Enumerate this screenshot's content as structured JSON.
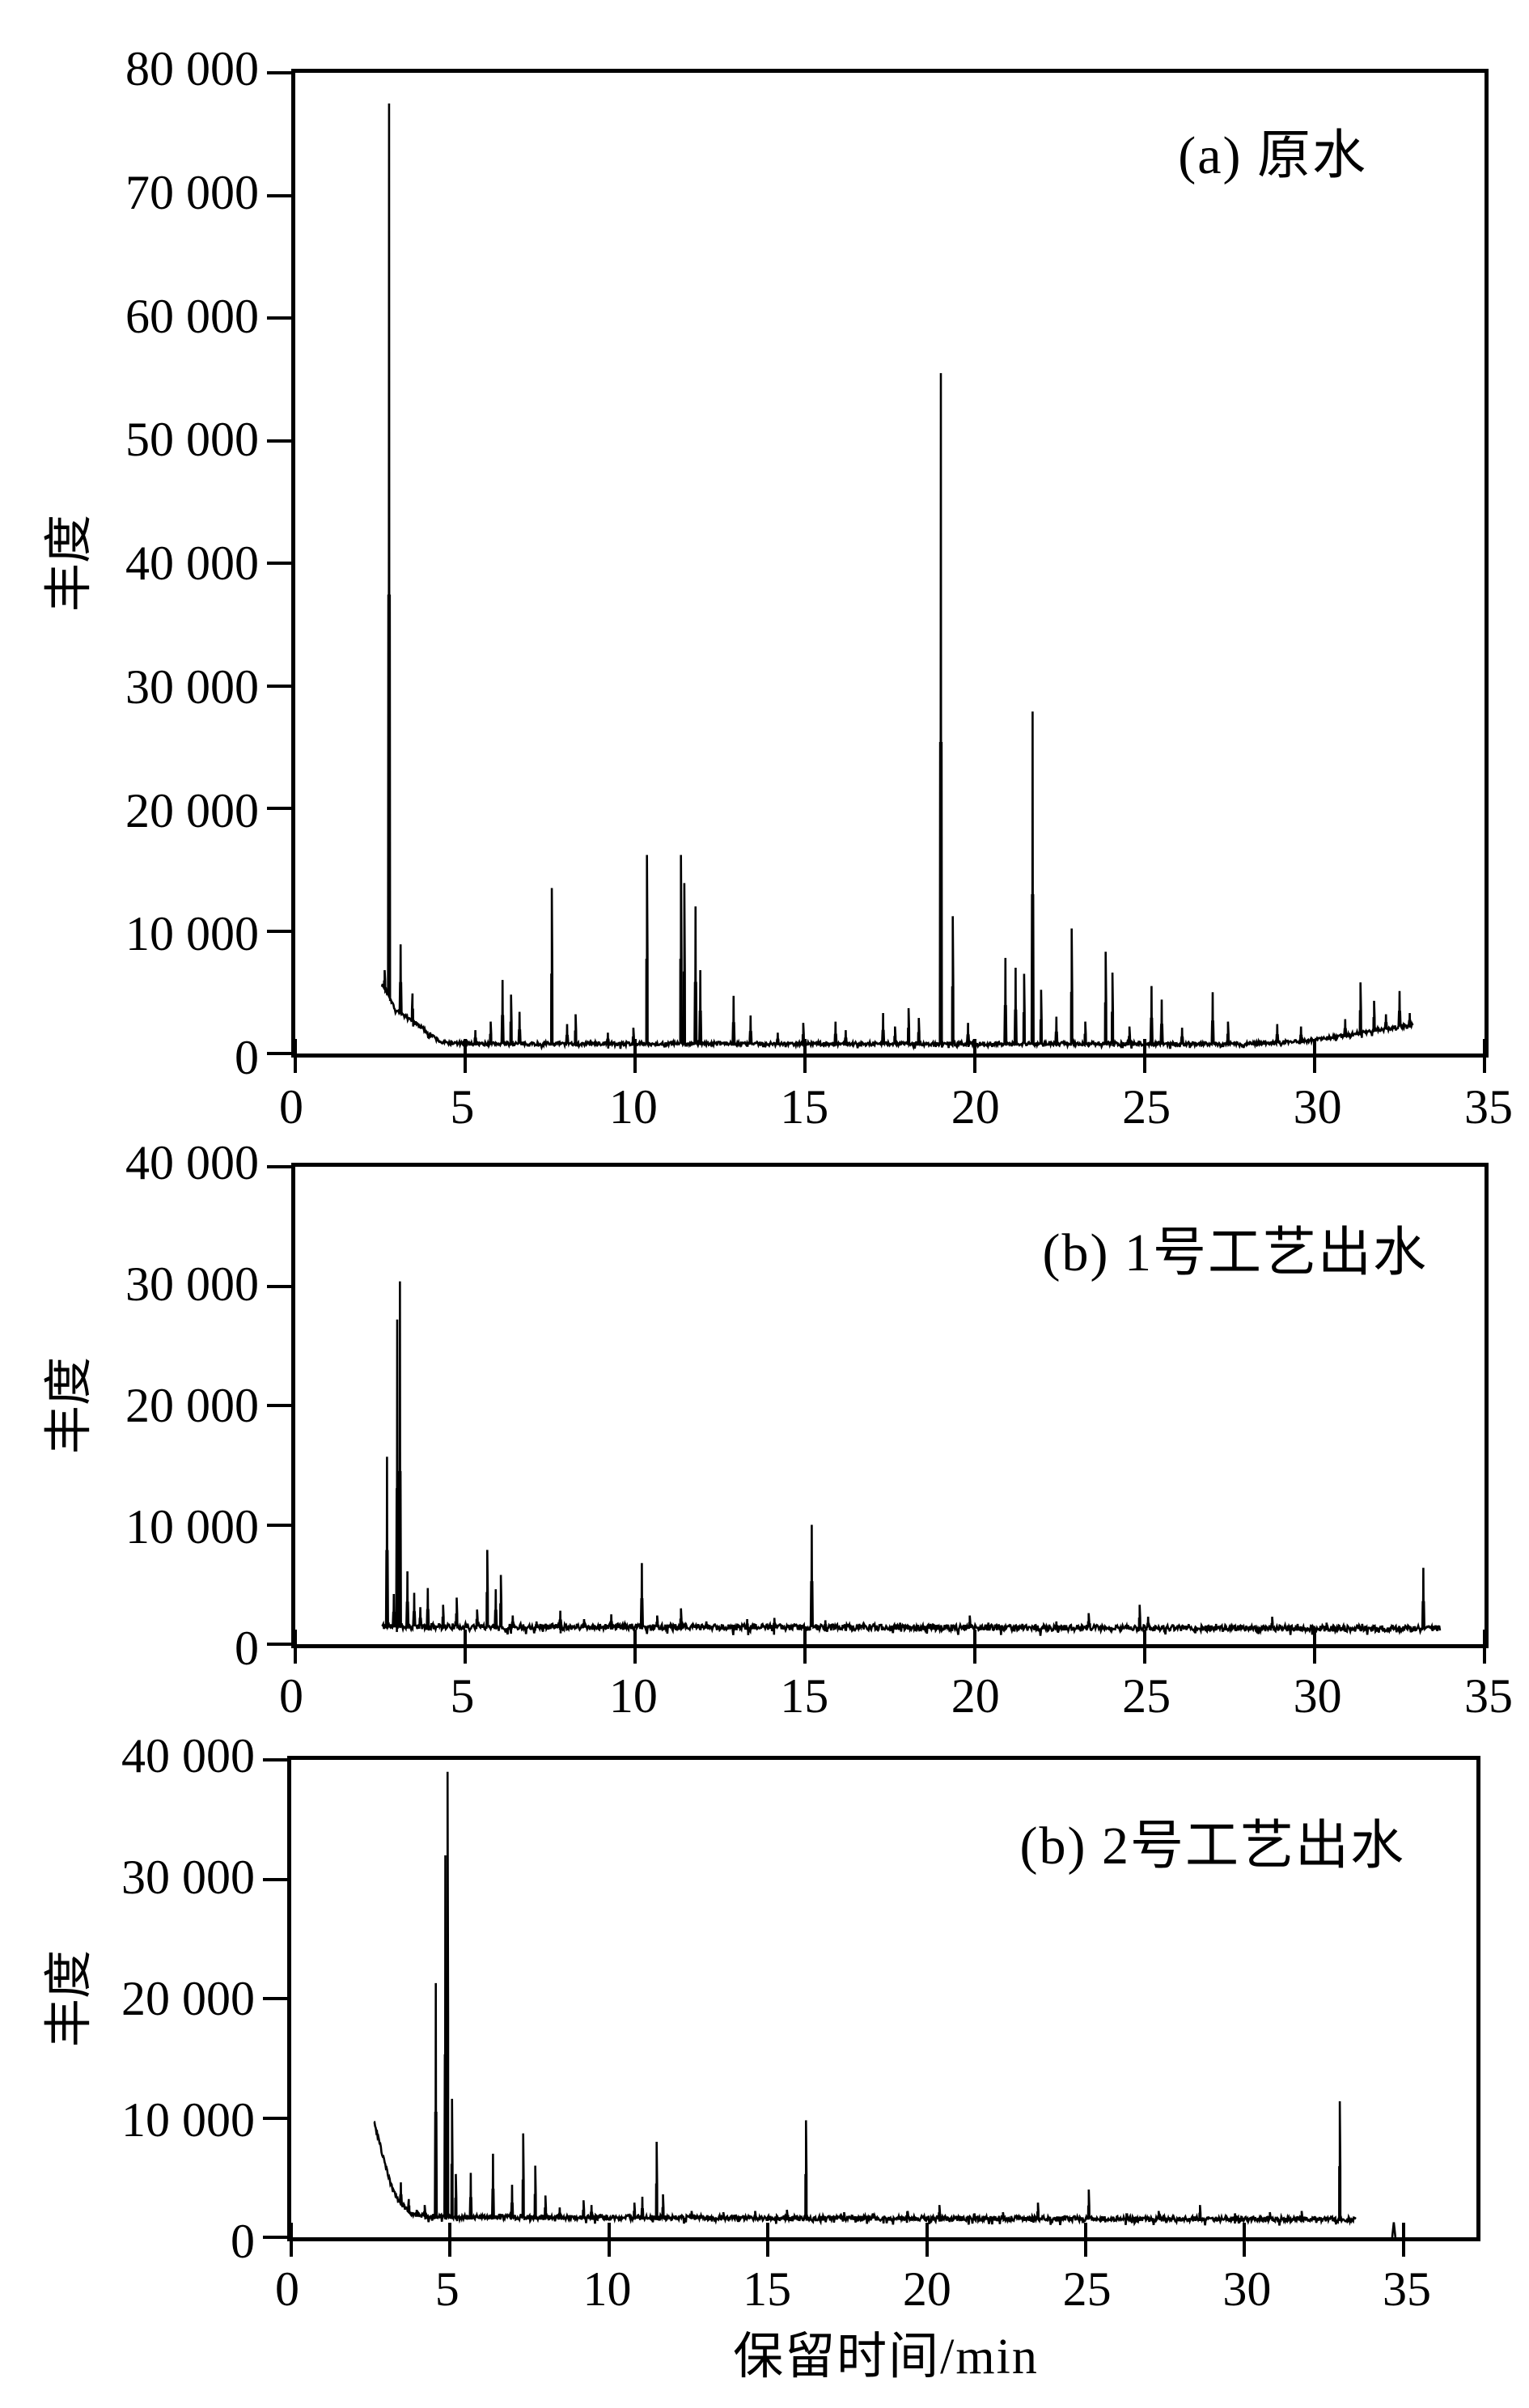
{
  "figure": {
    "background": "#ffffff",
    "ink_color": "#000000"
  },
  "chart_data": {
    "type": "line",
    "xlabel": "保留时间/min",
    "ylabel": "丰度",
    "legend": "none",
    "grid": "off",
    "panels": [
      {
        "id": "a",
        "title": "(a) 原水",
        "ylabel": "丰度",
        "ylim": [
          0,
          80000
        ],
        "x_axis_max": 35,
        "y_tick_values": [
          0,
          10000,
          20000,
          30000,
          40000,
          50000,
          60000,
          70000,
          80000
        ],
        "y_tick_labels": [
          "0",
          "10 000",
          "20 000",
          "30 000",
          "40 000",
          "50 000",
          "60 000",
          "70 000",
          "80 000"
        ],
        "x_tick_values": [
          0,
          5,
          10,
          15,
          20,
          25,
          30,
          35
        ],
        "x_tick_labels": [
          "0",
          "5",
          "10",
          "15",
          "20",
          "25",
          "30",
          "35"
        ],
        "trace": {
          "t_start": 2.55,
          "t_end": 32.9,
          "seed": 7,
          "noise_amplitude": 160,
          "baseline_points": [
            [
              2.55,
              5600
            ],
            [
              2.7,
              5000
            ],
            [
              2.95,
              3600
            ],
            [
              3.3,
              2900
            ],
            [
              3.6,
              2400
            ],
            [
              3.9,
              1700
            ],
            [
              4.3,
              900
            ],
            [
              5.0,
              800
            ],
            [
              28.0,
              800
            ],
            [
              29.5,
              950
            ],
            [
              31.0,
              1500
            ],
            [
              32.0,
              2000
            ],
            [
              32.9,
              2300
            ]
          ],
          "peaks": [
            [
              2.63,
              6800
            ],
            [
              2.76,
              77500,
              0.06
            ],
            [
              3.1,
              8900
            ],
            [
              3.45,
              4900
            ],
            [
              5.3,
              1900
            ],
            [
              5.75,
              2600
            ],
            [
              6.1,
              6000
            ],
            [
              6.35,
              4800
            ],
            [
              6.6,
              3400
            ],
            [
              7.55,
              13500
            ],
            [
              8.0,
              2400
            ],
            [
              8.25,
              3200
            ],
            [
              9.2,
              1700
            ],
            [
              9.95,
              2100
            ],
            [
              10.35,
              16200,
              0.05
            ],
            [
              11.35,
              16200,
              0.05
            ],
            [
              11.45,
              13900
            ],
            [
              11.78,
              12000,
              0.05
            ],
            [
              11.92,
              6800
            ],
            [
              12.9,
              4700
            ],
            [
              13.4,
              3100
            ],
            [
              14.2,
              1700
            ],
            [
              14.95,
              2500
            ],
            [
              15.9,
              2600
            ],
            [
              16.2,
              1900
            ],
            [
              17.3,
              3300
            ],
            [
              17.65,
              2200
            ],
            [
              18.05,
              3700
            ],
            [
              18.35,
              2900
            ],
            [
              19.0,
              55500,
              0.06
            ],
            [
              19.35,
              11200
            ],
            [
              19.8,
              2500
            ],
            [
              20.9,
              7800
            ],
            [
              21.2,
              7000
            ],
            [
              21.45,
              6500
            ],
            [
              21.7,
              27900,
              0.05
            ],
            [
              21.95,
              5200
            ],
            [
              22.4,
              3000
            ],
            [
              22.85,
              10200
            ],
            [
              23.25,
              2600
            ],
            [
              23.85,
              8300
            ],
            [
              24.05,
              6600
            ],
            [
              24.55,
              2200
            ],
            [
              25.2,
              5500
            ],
            [
              25.5,
              4400
            ],
            [
              26.1,
              2100
            ],
            [
              27.0,
              5000
            ],
            [
              27.45,
              2600
            ],
            [
              28.9,
              2400
            ],
            [
              29.6,
              2200
            ],
            [
              30.9,
              2800
            ],
            [
              31.35,
              5800
            ],
            [
              31.75,
              4300
            ],
            [
              32.1,
              3200
            ],
            [
              32.5,
              5100
            ],
            [
              32.8,
              3300
            ]
          ],
          "fragments": []
        }
      },
      {
        "id": "b",
        "title": "(b) 1号工艺出水",
        "ylabel": "丰度",
        "ylim": [
          0,
          40000
        ],
        "x_axis_max": 35,
        "y_tick_values": [
          0,
          10000,
          20000,
          30000,
          40000
        ],
        "y_tick_labels": [
          "0",
          "10 000",
          "20 000",
          "30 000",
          "40 000"
        ],
        "x_tick_values": [
          0,
          5,
          10,
          15,
          20,
          25,
          30,
          35
        ],
        "x_tick_labels": [
          "0",
          "5",
          "10",
          "15",
          "20",
          "25",
          "30",
          "35"
        ],
        "trace": {
          "t_start": 2.55,
          "t_end": 33.7,
          "seed": 11,
          "noise_amplitude": 260,
          "baseline_points": [
            [
              2.55,
              1500
            ],
            [
              33.7,
              1300
            ]
          ],
          "peaks": [
            [
              2.7,
              15700,
              0.05
            ],
            [
              2.9,
              4200
            ],
            [
              3.0,
              27200
            ],
            [
              3.08,
              30400,
              0.05
            ],
            [
              3.3,
              6100
            ],
            [
              3.5,
              4300
            ],
            [
              3.68,
              3100
            ],
            [
              3.9,
              4700
            ],
            [
              4.35,
              3300
            ],
            [
              4.75,
              3900
            ],
            [
              5.35,
              2900
            ],
            [
              5.65,
              7900
            ],
            [
              5.9,
              4600
            ],
            [
              6.05,
              5800
            ],
            [
              6.4,
              2400
            ],
            [
              7.1,
              1900
            ],
            [
              7.8,
              2800
            ],
            [
              8.5,
              2100
            ],
            [
              9.3,
              2500
            ],
            [
              10.2,
              6800
            ],
            [
              10.65,
              2400
            ],
            [
              11.35,
              3000
            ],
            [
              12.1,
              1900
            ],
            [
              13.3,
              2100
            ],
            [
              14.1,
              2200
            ],
            [
              15.2,
              10000,
              0.05
            ],
            [
              15.6,
              2000
            ],
            [
              16.6,
              1700
            ],
            [
              17.8,
              1800
            ],
            [
              18.7,
              1700
            ],
            [
              19.85,
              2400
            ],
            [
              20.4,
              1800
            ],
            [
              21.4,
              1700
            ],
            [
              22.4,
              1900
            ],
            [
              23.35,
              2600
            ],
            [
              24.85,
              3300
            ],
            [
              25.1,
              2300
            ],
            [
              26.3,
              1600
            ],
            [
              27.1,
              1700
            ],
            [
              28.75,
              2300
            ],
            [
              29.5,
              1700
            ],
            [
              30.35,
              1800
            ],
            [
              31.4,
              1700
            ],
            [
              32.3,
              1600
            ],
            [
              33.2,
              6400,
              0.05
            ]
          ],
          "fragments": []
        }
      },
      {
        "id": "c",
        "title": "(b) 2号工艺出水",
        "ylabel": "丰度",
        "ylim": [
          0,
          40000
        ],
        "x_axis_max": 37.3,
        "y_tick_values": [
          0,
          10000,
          20000,
          30000,
          40000
        ],
        "y_tick_labels": [
          "0",
          "10 000",
          "20 000",
          "30 000",
          "40 000"
        ],
        "x_tick_values": [
          0,
          5,
          10,
          15,
          20,
          25,
          30,
          35
        ],
        "x_tick_labels": [
          "0",
          "5",
          "10",
          "15",
          "20",
          "25",
          "30",
          "35"
        ],
        "trace": {
          "t_start": 2.6,
          "t_end": 33.5,
          "seed": 23,
          "noise_amplitude": 210,
          "baseline_points": [
            [
              2.6,
              9800
            ],
            [
              2.75,
              8200
            ],
            [
              2.9,
              6600
            ],
            [
              3.05,
              5200
            ],
            [
              3.2,
              4000
            ],
            [
              3.45,
              2800
            ],
            [
              3.8,
              2000
            ],
            [
              4.3,
              1700
            ],
            [
              33.5,
              1500
            ]
          ],
          "peaks": [
            [
              3.45,
              4600
            ],
            [
              3.7,
              3200
            ],
            [
              3.95,
              2300
            ],
            [
              4.2,
              2700
            ],
            [
              4.55,
              21300,
              0.05
            ],
            [
              4.85,
              32000
            ],
            [
              4.92,
              39000,
              0.05
            ],
            [
              5.06,
              11600
            ],
            [
              5.18,
              5300
            ],
            [
              5.65,
              5400
            ],
            [
              6.35,
              7000
            ],
            [
              6.95,
              4400
            ],
            [
              7.3,
              8700
            ],
            [
              7.68,
              6000
            ],
            [
              8.0,
              3500
            ],
            [
              8.45,
              2500
            ],
            [
              9.2,
              3100
            ],
            [
              9.45,
              2700
            ],
            [
              10.8,
              2900
            ],
            [
              11.05,
              3400
            ],
            [
              11.5,
              8000
            ],
            [
              11.7,
              3600
            ],
            [
              12.6,
              2200
            ],
            [
              13.6,
              2100
            ],
            [
              14.6,
              2200
            ],
            [
              15.6,
              2300
            ],
            [
              16.2,
              9800,
              0.05
            ],
            [
              17.4,
              2100
            ],
            [
              18.3,
              2000
            ],
            [
              19.4,
              2200
            ],
            [
              20.4,
              2700
            ],
            [
              21.5,
              2000
            ],
            [
              22.4,
              2100
            ],
            [
              23.5,
              2900
            ],
            [
              25.1,
              4000
            ],
            [
              26.3,
              2000
            ],
            [
              27.3,
              2200
            ],
            [
              28.6,
              2700
            ],
            [
              29.7,
              2000
            ],
            [
              30.8,
              2100
            ],
            [
              31.8,
              2200
            ],
            [
              33.0,
              11400,
              0.05
            ]
          ],
          "fragments": [
            [
              34.65,
              34.75,
              1250
            ]
          ]
        }
      }
    ]
  }
}
